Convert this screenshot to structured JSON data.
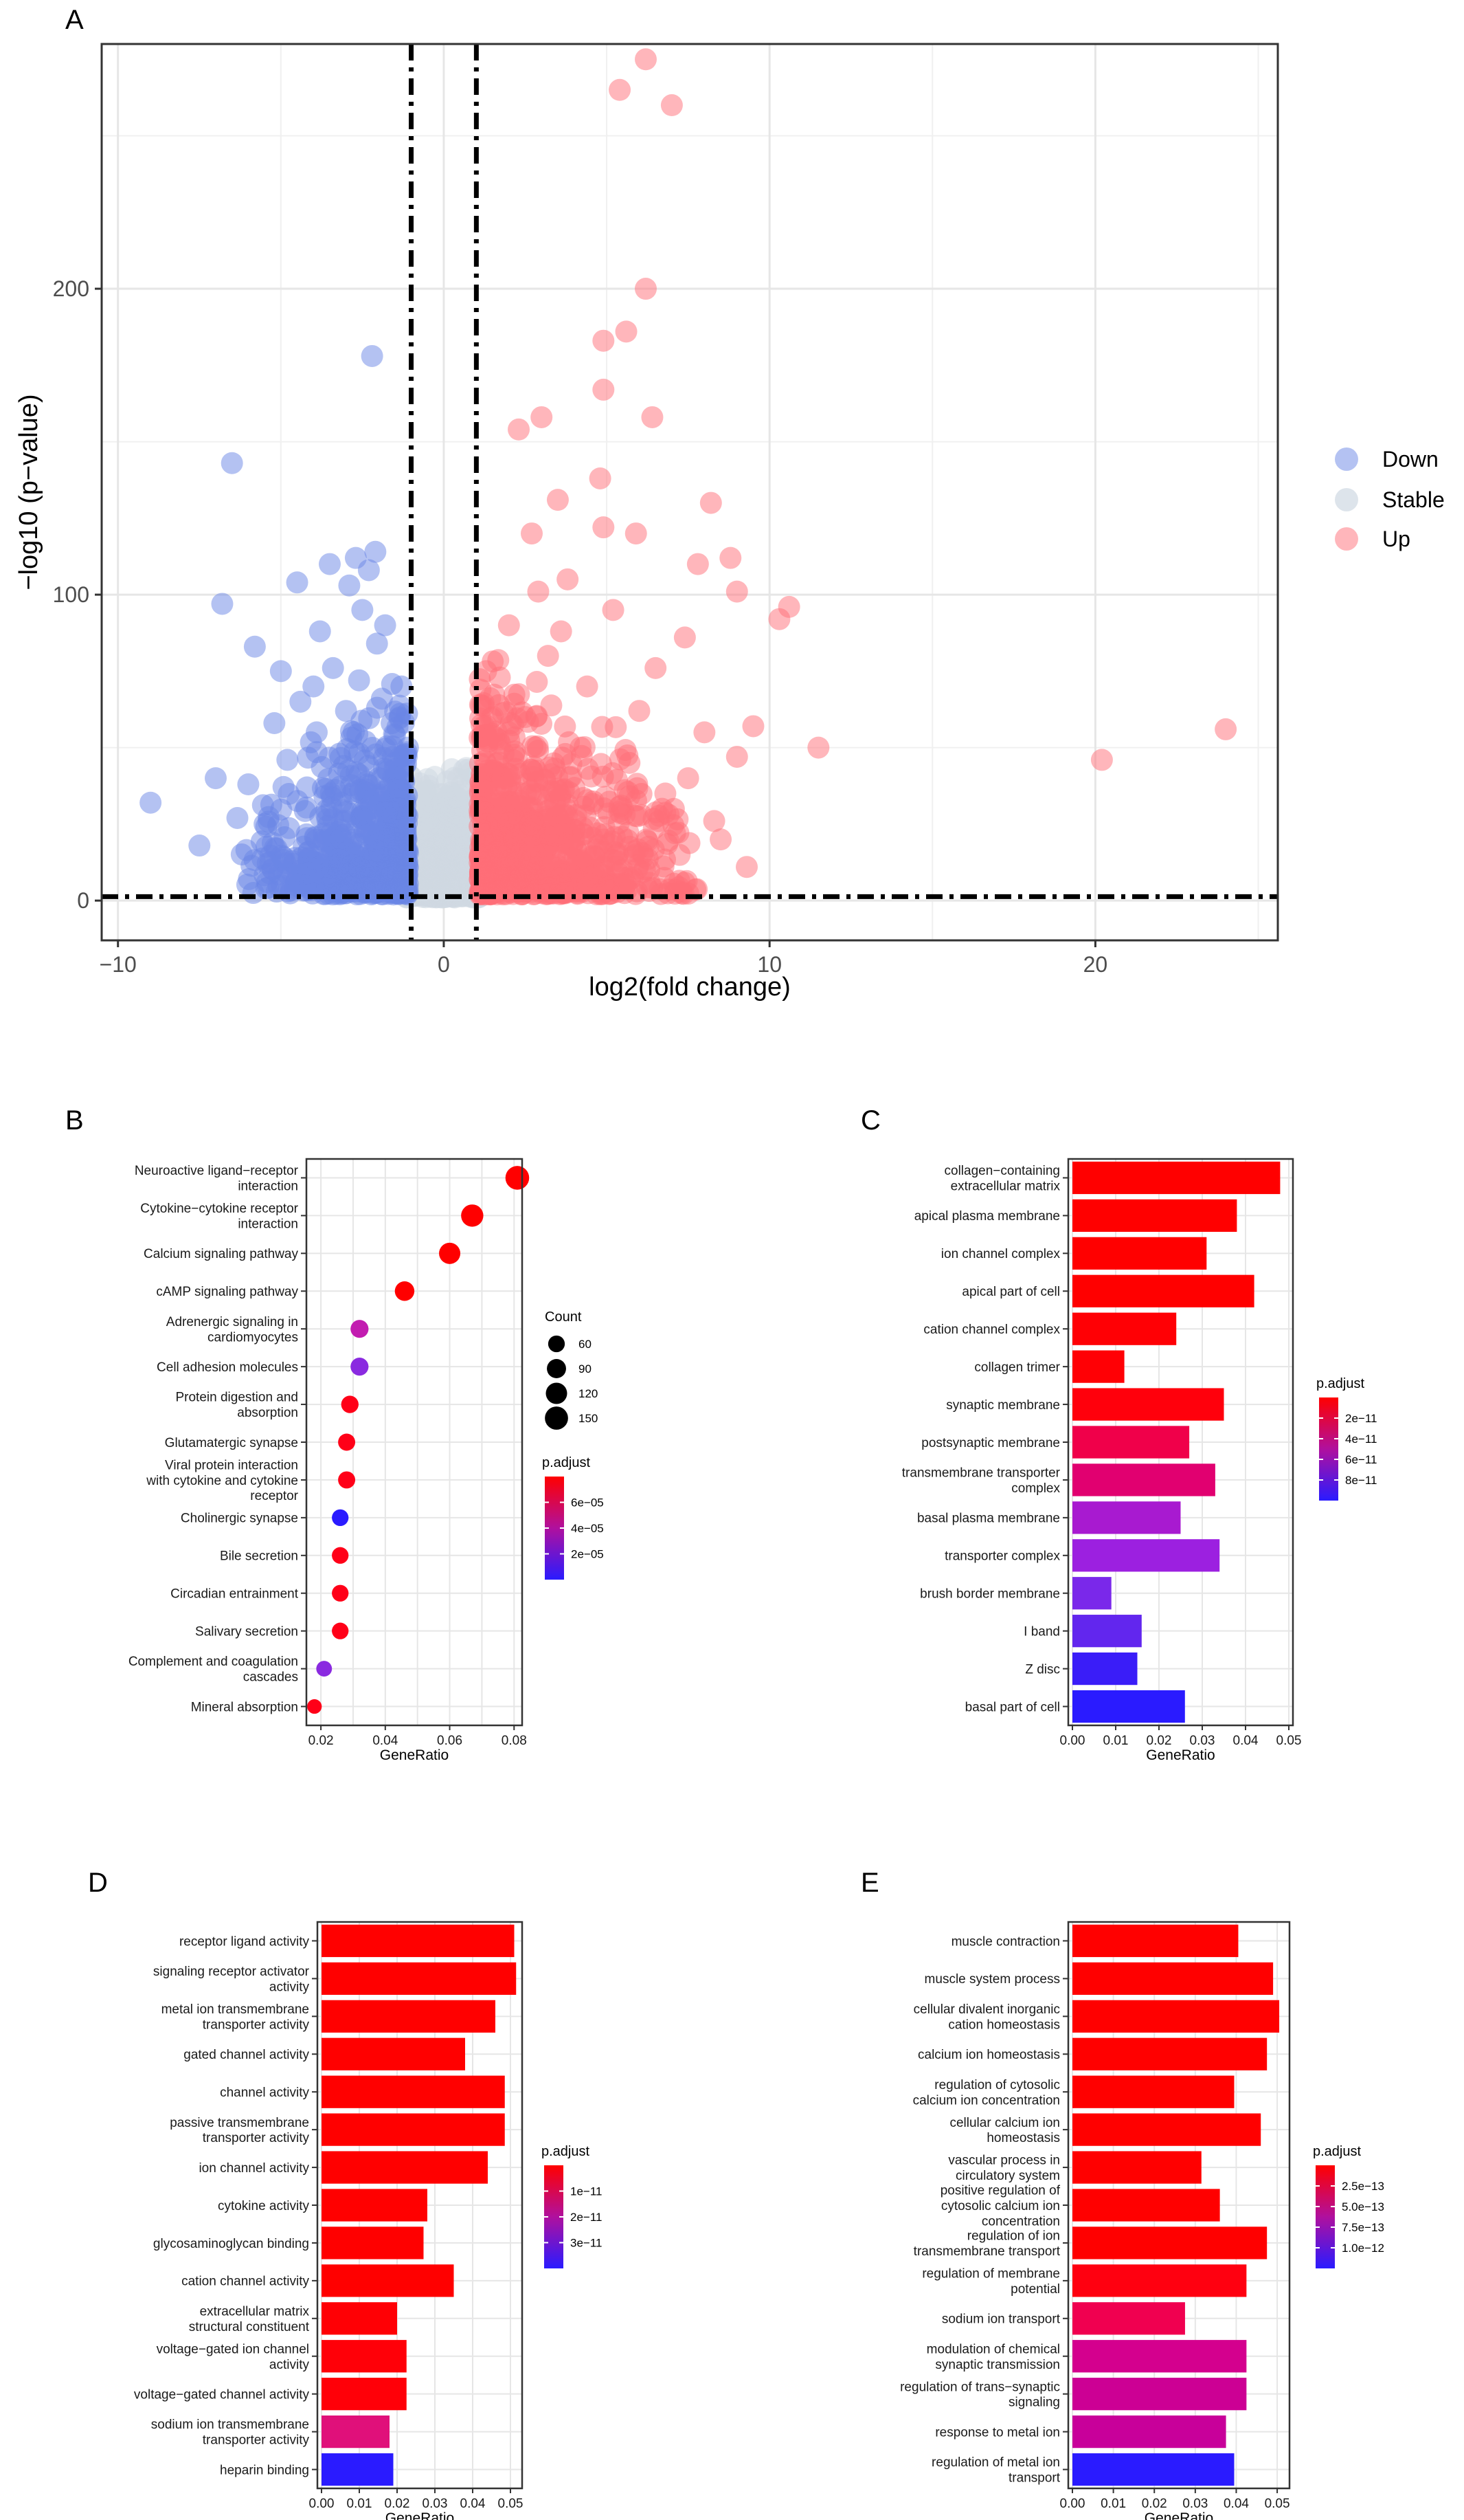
{
  "panels": {
    "A": "A",
    "B": "B",
    "C": "C",
    "D": "D",
    "E": "E"
  },
  "colors": {
    "down": "#6a85e6",
    "stable": "#cfd8e2",
    "up": "#ff6e78",
    "padj_high": "#ff0000",
    "padj_low": "#2a1bff",
    "grid": "#e6e6e6"
  },
  "chart_data": [
    {
      "id": "A",
      "type": "scatter",
      "title": "",
      "xlabel": "log2(fold change)",
      "ylabel": "−log10 (p−value)",
      "xlim": [
        -10.5,
        25.6
      ],
      "ylim": [
        -13,
        280
      ],
      "xticks": [
        -10,
        0,
        10,
        20
      ],
      "xtick_labels": [
        "−10",
        "0",
        "10",
        "20"
      ],
      "yticks": [
        0,
        100,
        200
      ],
      "thresholds": {
        "x": [
          -1,
          1
        ],
        "y": 1.3
      },
      "legend": {
        "position": "right",
        "entries": [
          "Down",
          "Stable",
          "Up"
        ]
      },
      "series": [
        {
          "name": "Down",
          "points": [
            [
              -9,
              32
            ],
            [
              -7.5,
              18
            ],
            [
              -7,
              40
            ],
            [
              -6.8,
              97
            ],
            [
              -6.5,
              143
            ],
            [
              -6,
              38
            ],
            [
              -5.8,
              83
            ],
            [
              -5.5,
              25
            ],
            [
              -5.2,
              58
            ],
            [
              -5,
              75
            ],
            [
              -4.8,
              46
            ],
            [
              -4.5,
              104
            ],
            [
              -4.4,
              65
            ],
            [
              -4.2,
              37
            ],
            [
              -4,
              70
            ],
            [
              -3.9,
              55
            ],
            [
              -3.8,
              88
            ],
            [
              -3.6,
              28
            ],
            [
              -3.5,
              110
            ],
            [
              -3.4,
              76
            ],
            [
              -3.2,
              48
            ],
            [
              -3,
              62
            ],
            [
              -2.9,
              103
            ],
            [
              -2.8,
              35
            ],
            [
              -2.7,
              112
            ],
            [
              -2.6,
              72
            ],
            [
              -2.5,
              95
            ],
            [
              -2.4,
              52
            ],
            [
              -2.3,
              108
            ],
            [
              -2.2,
              178
            ],
            [
              -2.1,
              114
            ],
            [
              -2.05,
              84
            ],
            [
              -2,
              40
            ],
            [
              -1.9,
              66
            ],
            [
              -1.8,
              90
            ],
            [
              -1.7,
              20
            ],
            [
              -1.6,
              58
            ],
            [
              -1.5,
              45
            ],
            [
              -1.4,
              30
            ],
            [
              -1.3,
              70
            ],
            [
              -1.2,
              15
            ],
            [
              -1.1,
              50
            ]
          ]
        },
        {
          "name": "Up",
          "points": [
            [
              6.2,
              275
            ],
            [
              5.4,
              265
            ],
            [
              7,
              260
            ],
            [
              6.2,
              200
            ],
            [
              5.6,
              186
            ],
            [
              4.9,
              183
            ],
            [
              4.9,
              167
            ],
            [
              3,
              158
            ],
            [
              6.4,
              158
            ],
            [
              2.3,
              154
            ],
            [
              4.8,
              138
            ],
            [
              3.5,
              131
            ],
            [
              8.2,
              130
            ],
            [
              5.9,
              120
            ],
            [
              8.8,
              112
            ],
            [
              7.8,
              110
            ],
            [
              10.6,
              96
            ],
            [
              10.3,
              92
            ],
            [
              9,
              101
            ],
            [
              7.4,
              86
            ],
            [
              3.2,
              80
            ],
            [
              4.4,
              70
            ],
            [
              6.5,
              76
            ],
            [
              9.5,
              57
            ],
            [
              11.5,
              50
            ],
            [
              9,
              47
            ],
            [
              20.2,
              46
            ],
            [
              24,
              56
            ],
            [
              8,
              55
            ],
            [
              7.5,
              40
            ],
            [
              6.8,
              35
            ],
            [
              8.5,
              20
            ],
            [
              9.3,
              11
            ],
            [
              2,
              90
            ],
            [
              2.5,
              60
            ],
            [
              1.8,
              40
            ],
            [
              2.7,
              120
            ],
            [
              3.8,
              105
            ],
            [
              5.2,
              95
            ],
            [
              4.2,
              50
            ],
            [
              5.5,
              30
            ],
            [
              1.5,
              20
            ],
            [
              3,
              15
            ],
            [
              4.6,
              10
            ],
            [
              2.2,
              32
            ],
            [
              6,
              62
            ],
            [
              7.1,
              22
            ],
            [
              5.7,
              45
            ],
            [
              1.3,
              75
            ],
            [
              3.6,
              88
            ],
            [
              4.9,
              122
            ],
            [
              2.9,
              101
            ],
            [
              6.7,
              30
            ],
            [
              8.3,
              26
            ]
          ]
        }
      ]
    },
    {
      "id": "B",
      "type": "scatter",
      "title": "",
      "xlabel": "GeneRatio",
      "xticks": [
        0.02,
        0.04,
        0.06,
        0.08
      ],
      "xlim": [
        0.0155,
        0.0825
      ],
      "categories": [
        "Neuroactive ligand−receptor interaction",
        "Cytokine−cytokine receptor interaction",
        "Calcium signaling pathway",
        "cAMP signaling pathway",
        "Adrenergic signaling in cardiomyocytes",
        "Cell adhesion molecules",
        "Protein digestion and absorption",
        "Glutamatergic synapse",
        "Viral protein interaction with cytokine and cytokine receptor",
        "Cholinergic synapse",
        "Bile secretion",
        "Circadian entrainment",
        "Salivary secretion",
        "Complement and coagulation cascades",
        "Mineral absorption"
      ],
      "category_lines": [
        [
          "Neuroactive ligand−receptor",
          "interaction"
        ],
        [
          "Cytokine−cytokine receptor",
          "interaction"
        ],
        [
          "Calcium signaling pathway"
        ],
        [
          "cAMP signaling pathway"
        ],
        [
          "Adrenergic signaling in",
          "cardiomyocytes"
        ],
        [
          "Cell adhesion molecules"
        ],
        [
          "Protein digestion and",
          "absorption"
        ],
        [
          "Glutamatergic synapse"
        ],
        [
          "Viral protein interaction",
          "with cytokine and cytokine",
          "receptor"
        ],
        [
          "Cholinergic synapse"
        ],
        [
          "Bile secretion"
        ],
        [
          "Circadian entrainment"
        ],
        [
          "Salivary secretion"
        ],
        [
          "Complement and coagulation",
          "cascades"
        ],
        [
          "Mineral absorption"
        ]
      ],
      "gene_ratio": [
        0.081,
        0.067,
        0.06,
        0.046,
        0.032,
        0.032,
        0.029,
        0.028,
        0.028,
        0.026,
        0.026,
        0.026,
        0.026,
        0.021,
        0.018
      ],
      "count": [
        160,
        135,
        120,
        95,
        75,
        75,
        68,
        65,
        65,
        60,
        60,
        60,
        60,
        50,
        40
      ],
      "p_adjust_colors": [
        "#ff0000",
        "#ff0000",
        "#ff0000",
        "#ff0000",
        "#c21cb0",
        "#8a2ae0",
        "#ff0018",
        "#ff0018",
        "#ff0018",
        "#2a1bff",
        "#ff0018",
        "#ff0018",
        "#ff0018",
        "#8a2ae0",
        "#ff0018"
      ],
      "legend_count": {
        "title": "Count",
        "values": [
          "60",
          "90",
          "120",
          "150"
        ]
      },
      "legend_padj": {
        "title": "p.adjust",
        "labels": [
          "6e−05",
          "4e−05",
          "2e−05"
        ]
      }
    },
    {
      "id": "C",
      "type": "bar",
      "title": "",
      "xlabel": "GeneRatio",
      "xticks": [
        0,
        0.01,
        0.02,
        0.03,
        0.04,
        0.05
      ],
      "xtick_labels": [
        "0.00",
        "0.01",
        "0.02",
        "0.03",
        "0.04",
        "0.05"
      ],
      "xlim": [
        0,
        0.05
      ],
      "categories": [
        "collagen−containing extracellular matrix",
        "apical plasma membrane",
        "ion channel complex",
        "apical part of cell",
        "cation channel complex",
        "collagen trimer",
        "synaptic membrane",
        "postsynaptic membrane",
        "transmembrane transporter complex",
        "basal plasma membrane",
        "transporter complex",
        "brush border membrane",
        "I band",
        "Z disc",
        "basal part of cell"
      ],
      "category_lines": [
        [
          "collagen−containing",
          "extracellular matrix"
        ],
        [
          "apical plasma membrane"
        ],
        [
          "ion channel complex"
        ],
        [
          "apical part of cell"
        ],
        [
          "cation channel complex"
        ],
        [
          "collagen trimer"
        ],
        [
          "synaptic membrane"
        ],
        [
          "postsynaptic membrane"
        ],
        [
          "transmembrane transporter",
          "complex"
        ],
        [
          "basal plasma membrane"
        ],
        [
          "transporter complex"
        ],
        [
          "brush border membrane"
        ],
        [
          "I band"
        ],
        [
          "Z disc"
        ],
        [
          "basal part of cell"
        ]
      ],
      "values": [
        0.048,
        0.038,
        0.031,
        0.042,
        0.024,
        0.012,
        0.035,
        0.027,
        0.033,
        0.025,
        0.034,
        0.009,
        0.016,
        0.015,
        0.026
      ],
      "p_adjust_colors": [
        "#ff0000",
        "#ff0000",
        "#ff0000",
        "#ff0000",
        "#ff0005",
        "#ff0005",
        "#ff000c",
        "#f0004a",
        "#e10070",
        "#a81ad0",
        "#9c20e0",
        "#7a28ea",
        "#6226ee",
        "#3a1df8",
        "#2a1bff"
      ],
      "legend_padj": {
        "title": "p.adjust",
        "labels": [
          "2e−11",
          "4e−11",
          "6e−11",
          "8e−11"
        ]
      }
    },
    {
      "id": "D",
      "type": "bar",
      "title": "",
      "xlabel": "GeneRatio",
      "xticks": [
        0,
        0.01,
        0.02,
        0.03,
        0.04,
        0.05
      ],
      "xtick_labels": [
        "0.00",
        "0.01",
        "0.02",
        "0.03",
        "0.04",
        "0.05"
      ],
      "xlim": [
        0,
        0.052
      ],
      "categories": [
        "receptor ligand activity",
        "signaling receptor activator activity",
        "metal ion transmembrane transporter activity",
        "gated channel activity",
        "channel activity",
        "passive transmembrane transporter activity",
        "ion channel activity",
        "cytokine activity",
        "glycosaminoglycan binding",
        "cation channel activity",
        "extracellular matrix structural constituent",
        "voltage−gated ion channel activity",
        "voltage−gated channel activity",
        "sodium ion transmembrane transporter activity",
        "heparin binding"
      ],
      "category_lines": [
        [
          "receptor ligand activity"
        ],
        [
          "signaling receptor activator",
          "activity"
        ],
        [
          "metal ion transmembrane",
          "transporter activity"
        ],
        [
          "gated channel activity"
        ],
        [
          "channel activity"
        ],
        [
          "passive transmembrane",
          "transporter activity"
        ],
        [
          "ion channel activity"
        ],
        [
          "cytokine activity"
        ],
        [
          "glycosaminoglycan binding"
        ],
        [
          "cation channel activity"
        ],
        [
          "extracellular matrix",
          "structural constituent"
        ],
        [
          "voltage−gated ion channel",
          "activity"
        ],
        [
          "voltage−gated channel activity"
        ],
        [
          "sodium ion transmembrane",
          "transporter activity"
        ],
        [
          "heparin binding"
        ]
      ],
      "values": [
        0.051,
        0.0515,
        0.046,
        0.038,
        0.0485,
        0.0485,
        0.044,
        0.028,
        0.027,
        0.035,
        0.02,
        0.0225,
        0.0225,
        0.018,
        0.019
      ],
      "p_adjust_colors": [
        "#ff0000",
        "#ff0000",
        "#ff0000",
        "#ff0000",
        "#ff0000",
        "#ff0000",
        "#ff0000",
        "#ff0000",
        "#ff0000",
        "#ff0000",
        "#ff0005",
        "#ff0008",
        "#ff0008",
        "#e0107a",
        "#2a1bff"
      ],
      "legend_padj": {
        "title": "p.adjust",
        "labels": [
          "1e−11",
          "2e−11",
          "3e−11"
        ]
      }
    },
    {
      "id": "E",
      "type": "bar",
      "title": "",
      "xlabel": "GeneRatio",
      "xticks": [
        0,
        0.01,
        0.02,
        0.03,
        0.04,
        0.05
      ],
      "xtick_labels": [
        "0.00",
        "0.01",
        "0.02",
        "0.03",
        "0.04",
        "0.05"
      ],
      "xlim": [
        0,
        0.052
      ],
      "categories": [
        "muscle contraction",
        "muscle system process",
        "cellular divalent inorganic cation homeostasis",
        "calcium ion homeostasis",
        "regulation of cytosolic calcium ion concentration",
        "cellular calcium ion homeostasis",
        "vascular process in circulatory system",
        "positive regulation of cytosolic calcium ion concentration",
        "regulation of ion transmembrane transport",
        "regulation of membrane potential",
        "sodium ion transport",
        "modulation of chemical synaptic transmission",
        "regulation of trans−synaptic signaling",
        "response to metal ion",
        "regulation of metal ion transport"
      ],
      "category_lines": [
        [
          "muscle contraction"
        ],
        [
          "muscle system process"
        ],
        [
          "cellular divalent inorganic",
          "cation homeostasis"
        ],
        [
          "calcium ion homeostasis"
        ],
        [
          "regulation of cytosolic",
          "calcium ion concentration"
        ],
        [
          "cellular calcium ion",
          "homeostasis"
        ],
        [
          "vascular process in",
          "circulatory system"
        ],
        [
          "positive regulation of",
          "cytosolic calcium ion",
          "concentration"
        ],
        [
          "regulation of ion",
          "transmembrane transport"
        ],
        [
          "regulation of membrane",
          "potential"
        ],
        [
          "sodium ion transport"
        ],
        [
          "modulation of chemical",
          "synaptic transmission"
        ],
        [
          "regulation of trans−synaptic",
          "signaling"
        ],
        [
          "response to metal ion"
        ],
        [
          "regulation of metal ion",
          "transport"
        ]
      ],
      "values": [
        0.0405,
        0.049,
        0.0505,
        0.0475,
        0.0395,
        0.046,
        0.0315,
        0.036,
        0.0475,
        0.0425,
        0.0275,
        0.0425,
        0.0425,
        0.0375,
        0.0395
      ],
      "p_adjust_colors": [
        "#ff0000",
        "#ff0000",
        "#ff0000",
        "#ff0000",
        "#ff0000",
        "#ff0000",
        "#ff0000",
        "#ff0000",
        "#ff0000",
        "#ff0010",
        "#f00050",
        "#d4008e",
        "#cc0094",
        "#c8009a",
        "#2a1bff"
      ],
      "legend_padj": {
        "title": "p.adjust",
        "labels": [
          "2.5e−13",
          "5.0e−13",
          "7.5e−13",
          "1.0e−12"
        ]
      }
    }
  ]
}
